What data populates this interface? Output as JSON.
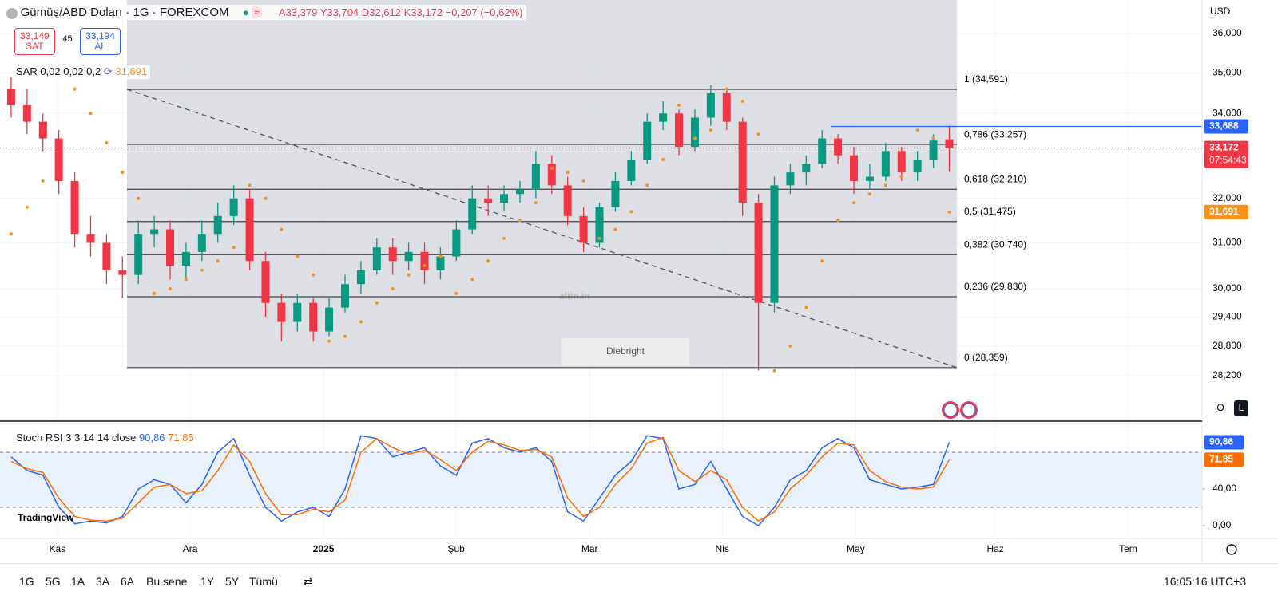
{
  "header": {
    "ohlc": [
      "A33,379",
      "Y33,704",
      "D32,612",
      "K33,172",
      "−0,207 (−0,62%)"
    ],
    "sell_price": "33,149",
    "sell_label": "SAT",
    "spread": "45",
    "buy_price": "33,194",
    "buy_label": "AL",
    "currency": "USD",
    "axis_buttons": [
      "O",
      "L"
    ],
    "logo": "TradingView",
    "periods": [
      "1G",
      "5G",
      "1A",
      "3A",
      "6A",
      "Bu sene",
      "1Y",
      "5Y",
      "Tümü"
    ],
    "clock": "16:05:16 UTC+3",
    "watermark": "altin.in",
    "author": "Diebright"
  },
  "chart_data": {
    "type": "candlestick",
    "title": "Gümüş/ABD Doları · 1G · FOREXCOM",
    "up_color": "#089981",
    "down_color": "#f23645",
    "log_scale": true,
    "grid": true,
    "candles": [
      [
        34.6,
        34.9,
        33.9,
        34.2
      ],
      [
        34.2,
        34.6,
        33.5,
        33.8
      ],
      [
        33.8,
        34.0,
        33.1,
        33.4
      ],
      [
        33.4,
        33.6,
        32.1,
        32.4
      ],
      [
        32.4,
        32.6,
        30.9,
        31.2
      ],
      [
        31.2,
        31.6,
        30.7,
        31.0
      ],
      [
        31.0,
        31.2,
        30.1,
        30.4
      ],
      [
        30.4,
        30.7,
        29.8,
        30.3
      ],
      [
        30.3,
        31.5,
        30.1,
        31.2
      ],
      [
        31.2,
        31.6,
        30.9,
        31.3
      ],
      [
        31.3,
        31.5,
        30.2,
        30.5
      ],
      [
        30.5,
        31.0,
        30.2,
        30.8
      ],
      [
        30.8,
        31.5,
        30.6,
        31.2
      ],
      [
        31.2,
        31.9,
        31.0,
        31.6
      ],
      [
        31.6,
        32.3,
        31.4,
        32.0
      ],
      [
        32.0,
        32.2,
        30.4,
        30.6
      ],
      [
        30.6,
        30.8,
        29.4,
        29.7
      ],
      [
        29.7,
        29.9,
        28.9,
        29.3
      ],
      [
        29.3,
        29.9,
        29.1,
        29.7
      ],
      [
        29.7,
        29.8,
        28.9,
        29.1
      ],
      [
        29.1,
        29.8,
        29.0,
        29.6
      ],
      [
        29.6,
        30.3,
        29.5,
        30.1
      ],
      [
        30.1,
        30.6,
        29.9,
        30.4
      ],
      [
        30.4,
        31.1,
        30.3,
        30.9
      ],
      [
        30.9,
        31.1,
        30.3,
        30.6
      ],
      [
        30.6,
        31.0,
        30.4,
        30.8
      ],
      [
        30.8,
        31.0,
        30.1,
        30.4
      ],
      [
        30.4,
        30.9,
        30.2,
        30.7
      ],
      [
        30.7,
        31.5,
        30.6,
        31.3
      ],
      [
        31.3,
        32.3,
        31.2,
        32.0
      ],
      [
        32.0,
        32.3,
        31.6,
        31.9
      ],
      [
        31.9,
        32.3,
        31.7,
        32.1
      ],
      [
        32.1,
        32.4,
        31.9,
        32.2
      ],
      [
        32.2,
        33.1,
        32.0,
        32.8
      ],
      [
        32.8,
        33.0,
        32.1,
        32.3
      ],
      [
        32.3,
        32.5,
        31.4,
        31.6
      ],
      [
        31.6,
        31.8,
        30.8,
        31.0
      ],
      [
        31.0,
        31.9,
        30.9,
        31.8
      ],
      [
        31.8,
        32.6,
        31.7,
        32.4
      ],
      [
        32.4,
        33.1,
        32.3,
        32.9
      ],
      [
        32.9,
        34.0,
        32.8,
        33.8
      ],
      [
        33.8,
        34.3,
        33.6,
        34.0
      ],
      [
        34.0,
        34.1,
        33.0,
        33.2
      ],
      [
        33.2,
        34.1,
        33.1,
        33.9
      ],
      [
        33.9,
        34.7,
        33.7,
        34.5
      ],
      [
        34.5,
        34.6,
        33.6,
        33.8
      ],
      [
        33.8,
        33.9,
        31.6,
        31.9
      ],
      [
        31.9,
        32.1,
        28.3,
        29.7
      ],
      [
        29.7,
        32.5,
        29.5,
        32.3
      ],
      [
        32.3,
        32.8,
        32.1,
        32.6
      ],
      [
        32.6,
        33.0,
        32.3,
        32.8
      ],
      [
        32.8,
        33.6,
        32.7,
        33.4
      ],
      [
        33.4,
        33.5,
        32.8,
        33.0
      ],
      [
        33.0,
        33.2,
        32.1,
        32.4
      ],
      [
        32.4,
        32.8,
        32.2,
        32.5
      ],
      [
        32.5,
        33.3,
        32.4,
        33.1
      ],
      [
        33.1,
        33.2,
        32.4,
        32.6
      ],
      [
        32.6,
        33.1,
        32.4,
        32.9
      ],
      [
        32.9,
        33.5,
        32.7,
        33.35
      ],
      [
        33.379,
        33.704,
        32.612,
        33.172
      ]
    ],
    "xlim": [
      -0.7,
      74.9
    ],
    "ylim": [
      27.31,
      36.87
    ],
    "xticks": [
      {
        "value": 2.91,
        "label": "Kas"
      },
      {
        "value": 11.26,
        "label": "Ara"
      },
      {
        "value": 19.65,
        "label": "2025"
      },
      {
        "value": 27.99,
        "label": "Şub"
      },
      {
        "value": 36.38,
        "label": "Mar"
      },
      {
        "value": 44.72,
        "label": "Nis"
      },
      {
        "value": 53.12,
        "label": "May"
      },
      {
        "value": 61.9,
        "label": "Haz"
      },
      {
        "value": 70.25,
        "label": "Tem"
      }
    ],
    "yticks": [
      {
        "value": 36,
        "label": "36,000"
      },
      {
        "value": 35,
        "label": "35,000"
      },
      {
        "value": 34,
        "label": "34,000"
      },
      {
        "value": 32,
        "label": "32,000"
      },
      {
        "value": 31,
        "label": "31,000"
      },
      {
        "value": 30,
        "label": "30,000"
      },
      {
        "value": 29.4,
        "label": "29,400"
      },
      {
        "value": 28.8,
        "label": "28,800"
      },
      {
        "value": 28.2,
        "label": "28,200"
      }
    ],
    "sar": {
      "name": "SAR 0,02 0,02 0,2",
      "color": "#f7931a",
      "last_label": "31,691",
      "values": [
        31.2,
        31.8,
        32.4,
        34.9,
        34.6,
        34.0,
        33.3,
        32.6,
        32.0,
        29.9,
        30.0,
        30.2,
        30.4,
        30.6,
        30.9,
        32.3,
        32.0,
        31.3,
        30.7,
        30.3,
        28.9,
        29.0,
        29.3,
        29.7,
        30.0,
        30.3,
        30.5,
        30.7,
        29.9,
        30.2,
        30.6,
        31.1,
        31.5,
        31.9,
        32.7,
        32.6,
        32.4,
        31.1,
        31.3,
        31.7,
        32.3,
        32.9,
        34.2,
        33.4,
        33.6,
        34.6,
        34.3,
        33.5,
        28.3,
        28.8,
        29.6,
        30.6,
        31.5,
        31.9,
        32.1,
        32.3,
        32.5,
        33.6,
        33.4,
        31.691
      ]
    },
    "fib_levels": [
      {
        "value": 34.591,
        "label": "1 (34,591)"
      },
      {
        "value": 33.257,
        "label": "0,786 (33,257)"
      },
      {
        "value": 32.21,
        "label": "0,618 (32,210)"
      },
      {
        "value": 31.475,
        "label": "0,5 (31,475)"
      },
      {
        "value": 30.74,
        "label": "0,382 (30,740)"
      },
      {
        "value": 29.83,
        "label": "0,236 (29,830)"
      },
      {
        "value": 28.359,
        "label": "0 (28,359)"
      }
    ],
    "alert_line": {
      "value": 33.688,
      "label": "33,688",
      "color": "#2962ff"
    },
    "last_price": {
      "value": 33.172,
      "label": "33,172",
      "countdown": "07:54:43",
      "color": "#f23645"
    },
    "stoch": {
      "name": "Stoch RSI 3 3 14 14 close",
      "ylim": [
        -13.9,
        112.2
      ],
      "yticks": [
        {
          "value": 0,
          "label": "0,00"
        },
        {
          "value": 40,
          "label": "40,00"
        }
      ],
      "bands": [
        20,
        80
      ],
      "series": [
        {
          "color": "#2962ff",
          "last_label": "90,86",
          "values": [
            75,
            60,
            55,
            20,
            2,
            5,
            3,
            10,
            40,
            50,
            45,
            25,
            45,
            80,
            95,
            55,
            20,
            5,
            15,
            20,
            10,
            40,
            98,
            95,
            75,
            80,
            85,
            65,
            55,
            90,
            95,
            85,
            80,
            85,
            70,
            15,
            5,
            30,
            55,
            70,
            98,
            95,
            40,
            45,
            70,
            40,
            10,
            0,
            20,
            50,
            60,
            85,
            95,
            85,
            50,
            45,
            40,
            42,
            45,
            90.86
          ]
        },
        {
          "color": "#ff6d00",
          "last_label": "71,85",
          "values": [
            70,
            62,
            58,
            30,
            10,
            6,
            5,
            8,
            25,
            42,
            45,
            35,
            38,
            60,
            88,
            70,
            35,
            12,
            12,
            18,
            15,
            28,
            80,
            95,
            85,
            78,
            82,
            72,
            60,
            80,
            92,
            88,
            82,
            83,
            75,
            30,
            10,
            20,
            45,
            62,
            90,
            96,
            60,
            48,
            60,
            50,
            20,
            5,
            15,
            40,
            55,
            75,
            90,
            88,
            60,
            48,
            42,
            40,
            42,
            71.85
          ]
        }
      ]
    }
  }
}
